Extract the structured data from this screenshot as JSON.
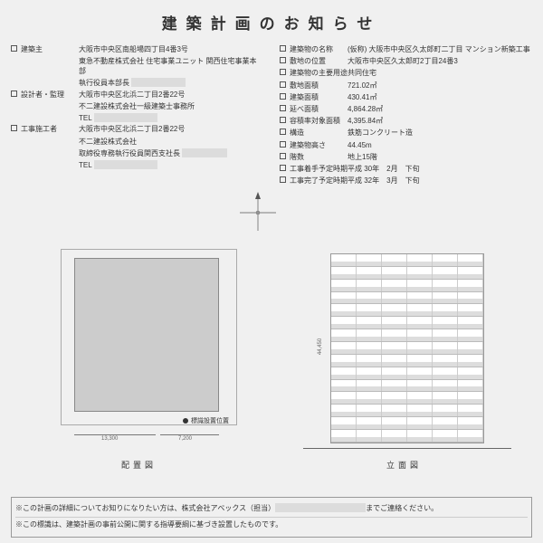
{
  "title": "建築計画のお知らせ",
  "left": {
    "owner_label": "建築主",
    "owner": [
      "大阪市中央区南船場四丁目4番3号",
      "東急不動産株式会社 住宅事業ユニット 関西住宅事業本部",
      "執行役員本部長"
    ],
    "designer_label": "設計者・監理",
    "designer": [
      "大阪市中央区北浜二丁目2番22号",
      "不二建設株式会社一級建築士事務所",
      "TEL"
    ],
    "contractor_label": "工事施工者",
    "contractor": [
      "大阪市中央区北浜二丁目2番22号",
      "不二建設株式会社",
      "取締役専務執行役員関西支社長",
      "TEL"
    ]
  },
  "right": [
    {
      "label": "建築物の名称",
      "value": "(仮称) 大阪市中央区久太郎町二丁目 マンション新築工事"
    },
    {
      "label": "敷地の位置",
      "value": "大阪市中央区久太郎町2丁目24番3"
    },
    {
      "label": "建築物の主要用途",
      "value": "共同住宅"
    },
    {
      "label": "敷地面積",
      "value": "721.02㎡"
    },
    {
      "label": "建築面積",
      "value": "430.41㎡"
    },
    {
      "label": "延べ面積",
      "value": "4,864.28㎡"
    },
    {
      "label": "容積率対象面積",
      "value": "4,395.84㎡"
    },
    {
      "label": "構造",
      "value": "鉄筋コンクリート造"
    },
    {
      "label": "建築物高さ",
      "value": "44.45m"
    },
    {
      "label": "階数",
      "value": "地上15階"
    },
    {
      "label": "工事着手予定時期",
      "value": "平成 30年　2月　下旬"
    },
    {
      "label": "工事完了予定時期",
      "value": "平成 32年　3月　下旬"
    }
  ],
  "diagrams": {
    "marker": "標識設置位置",
    "plan_label": "配置図",
    "elev_label": "立面図",
    "floors": 15,
    "units_per_floor": 6
  },
  "footer": {
    "line1_a": "※この計画の詳細についてお知りになりたい方は、株式会社アベックス（担当）",
    "line1_b": "までご連絡ください。",
    "line2": "※この標識は、建築計画の事前公開に関する指導要綱に基づき設置したものです。"
  },
  "colors": {
    "bg": "#f0f0f0",
    "block": "#ccc",
    "redact": "#dcdcdc"
  }
}
